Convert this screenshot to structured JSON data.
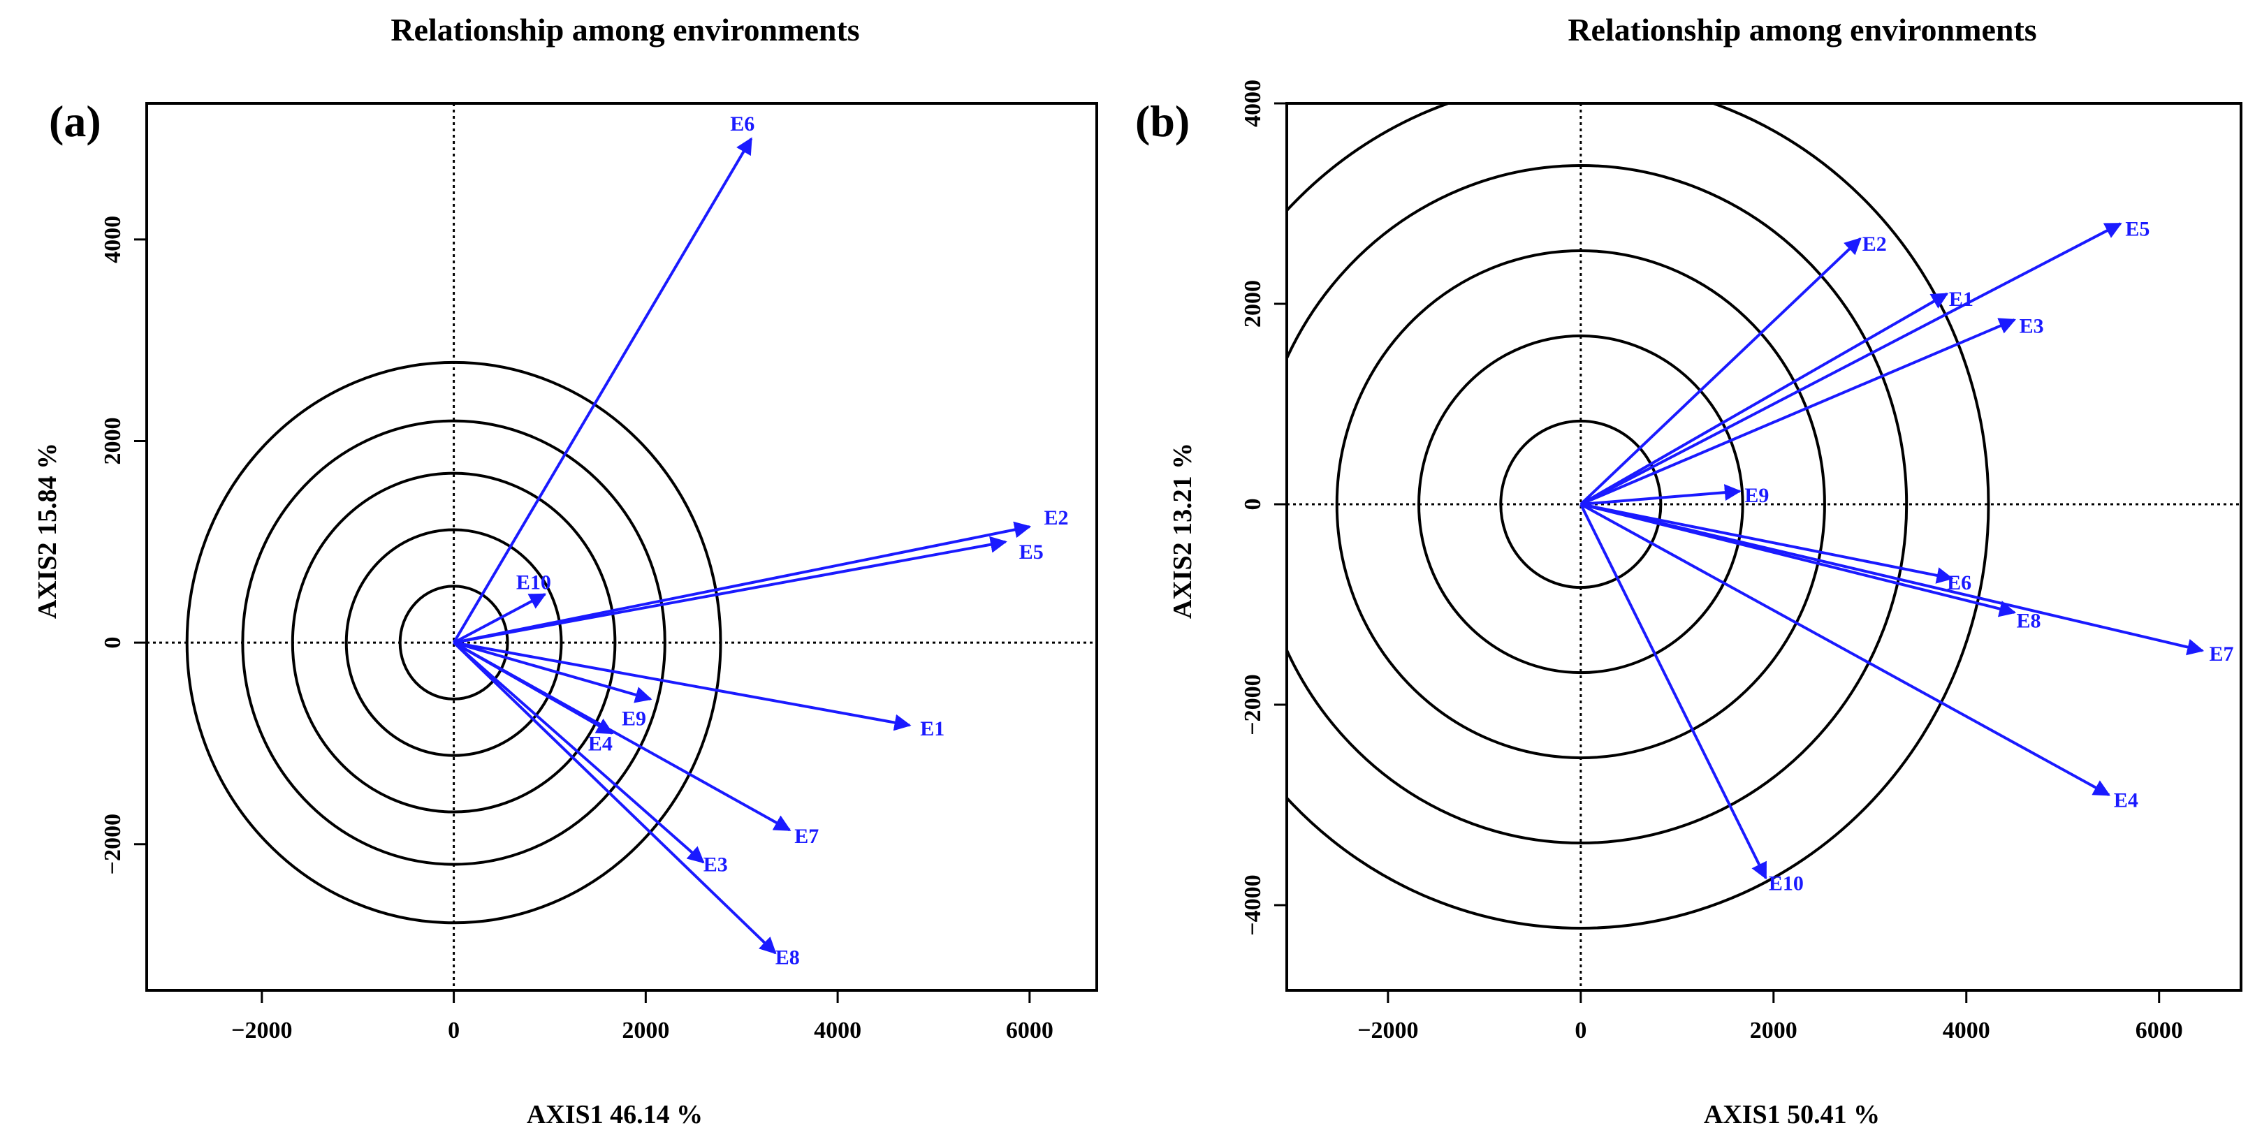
{
  "colors": {
    "vector": "#1a1aff",
    "ring": "#000000",
    "axis": "#000000"
  },
  "chart_data": [
    {
      "type": "scatter",
      "panel": "(a)",
      "title": "Relationship among environments",
      "xlabel": "AXIS1 46.14 %",
      "ylabel": "AXIS2 15.84 %",
      "xlim": [
        -3200,
        6700
      ],
      "ylim": [
        -3450,
        5350
      ],
      "xticks": [
        -2000,
        0,
        2000,
        4000,
        6000
      ],
      "yticks": [
        -2000,
        0,
        2000,
        4000
      ],
      "rings": [
        560,
        1120,
        1680,
        2200,
        2780
      ],
      "vectors": [
        {
          "name": "E6",
          "x": 3100,
          "y": 5000,
          "lx": 2880,
          "ly": 5150
        },
        {
          "name": "E2",
          "x": 6000,
          "y": 1150,
          "lx": 6150,
          "ly": 1240
        },
        {
          "name": "E5",
          "x": 5750,
          "y": 1000,
          "lx": 5890,
          "ly": 900
        },
        {
          "name": "E10",
          "x": 950,
          "y": 480,
          "lx": 650,
          "ly": 600
        },
        {
          "name": "E1",
          "x": 4750,
          "y": -820,
          "lx": 4860,
          "ly": -850
        },
        {
          "name": "E9",
          "x": 2050,
          "y": -560,
          "lx": 1750,
          "ly": -750
        },
        {
          "name": "E4",
          "x": 1650,
          "y": -900,
          "lx": 1400,
          "ly": -1000
        },
        {
          "name": "E7",
          "x": 3500,
          "y": -1860,
          "lx": 3550,
          "ly": -1920
        },
        {
          "name": "E3",
          "x": 2600,
          "y": -2180,
          "lx": 2600,
          "ly": -2200
        },
        {
          "name": "E8",
          "x": 3350,
          "y": -3080,
          "lx": 3350,
          "ly": -3120
        }
      ]
    },
    {
      "type": "scatter",
      "panel": "(b)",
      "title": "Relationship among environments",
      "xlabel": "AXIS1 50.41 %",
      "ylabel": "AXIS2 13.21 %",
      "xlim": [
        -3050,
        6850
      ],
      "ylim": [
        -4850,
        4000
      ],
      "xticks": [
        -2000,
        0,
        2000,
        4000,
        6000
      ],
      "yticks": [
        -4000,
        -2000,
        0,
        2000,
        4000
      ],
      "rings": [
        830,
        1680,
        2530,
        3380,
        4230
      ],
      "vectors": [
        {
          "name": "E2",
          "x": 2900,
          "y": 2650,
          "lx": 2920,
          "ly": 2600
        },
        {
          "name": "E1",
          "x": 3800,
          "y": 2100,
          "lx": 3820,
          "ly": 2050
        },
        {
          "name": "E5",
          "x": 5600,
          "y": 2800,
          "lx": 5650,
          "ly": 2750
        },
        {
          "name": "E3",
          "x": 4500,
          "y": 1840,
          "lx": 4550,
          "ly": 1780
        },
        {
          "name": "E9",
          "x": 1650,
          "y": 130,
          "lx": 1700,
          "ly": 90
        },
        {
          "name": "E6",
          "x": 3850,
          "y": -740,
          "lx": 3800,
          "ly": -780
        },
        {
          "name": "E8",
          "x": 4500,
          "y": -1080,
          "lx": 4520,
          "ly": -1160
        },
        {
          "name": "E7",
          "x": 6450,
          "y": -1460,
          "lx": 6520,
          "ly": -1490
        },
        {
          "name": "E4",
          "x": 5480,
          "y": -2900,
          "lx": 5530,
          "ly": -2950
        },
        {
          "name": "E10",
          "x": 1920,
          "y": -3730,
          "lx": 1950,
          "ly": -3780
        }
      ]
    }
  ]
}
